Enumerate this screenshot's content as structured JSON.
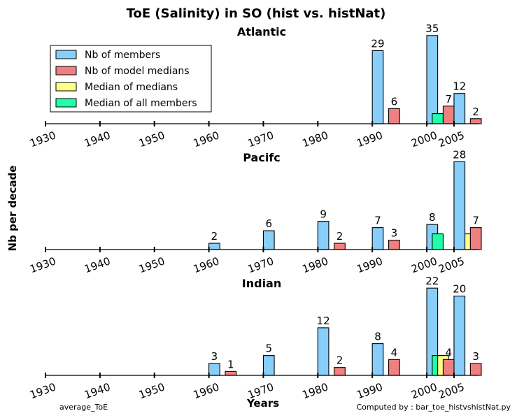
{
  "chart_data": {
    "type": "bar",
    "title": "ToE (Salinity) in SO (hist vs. histNat)",
    "ylabel": "Nb per decade",
    "xlabel": "Years",
    "x_ticks": [
      "1930",
      "1940",
      "1950",
      "1960",
      "1970",
      "1980",
      "1990",
      "2000",
      "2005"
    ],
    "legend": {
      "position": "upper-left of top panel",
      "entries": [
        {
          "name": "Nb of members",
          "color": "#87CEFA"
        },
        {
          "name": "Nb of model medians",
          "color": "#F08080"
        },
        {
          "name": "Median of medians",
          "color": "#FFFF88"
        },
        {
          "name": "Median of all members",
          "color": "#22FFAA"
        }
      ]
    },
    "series_colors": {
      "members": "#87CEFA",
      "medians": "#F08080",
      "median_of_medians": "#FFFF88",
      "median_of_all": "#22FFAA"
    },
    "panels": [
      {
        "title": "Atlantic",
        "ylim": [
          0,
          38
        ],
        "bars": [
          {
            "series": "members",
            "x": 1990,
            "value": 29,
            "label": "29"
          },
          {
            "series": "medians",
            "x": 1990,
            "value": 6,
            "label": "6"
          },
          {
            "series": "members",
            "x": 2000,
            "value": 35,
            "label": "35"
          },
          {
            "series": "median_of_all",
            "x": 2000,
            "value": 4
          },
          {
            "series": "medians",
            "x": 2000,
            "value": 7,
            "label": "7"
          },
          {
            "series": "members",
            "x": 2005,
            "value": 12,
            "label": "12"
          },
          {
            "series": "medians",
            "x": 2005,
            "value": 2,
            "label": "2"
          }
        ]
      },
      {
        "title": "Pacifc",
        "ylim": [
          0,
          31
        ],
        "bars": [
          {
            "series": "members",
            "x": 1960,
            "value": 2,
            "label": "2"
          },
          {
            "series": "members",
            "x": 1970,
            "value": 6,
            "label": "6"
          },
          {
            "series": "members",
            "x": 1980,
            "value": 9,
            "label": "9"
          },
          {
            "series": "medians",
            "x": 1980,
            "value": 2,
            "label": "2"
          },
          {
            "series": "members",
            "x": 1990,
            "value": 7,
            "label": "7"
          },
          {
            "series": "medians",
            "x": 1990,
            "value": 3,
            "label": "3"
          },
          {
            "series": "members",
            "x": 2000,
            "value": 8,
            "label": "8"
          },
          {
            "series": "median_of_all",
            "x": 2000,
            "value": 5
          },
          {
            "series": "members",
            "x": 2005,
            "value": 28,
            "label": "28"
          },
          {
            "series": "median_of_medians",
            "x": 2005,
            "value": 5
          },
          {
            "series": "medians",
            "x": 2005,
            "value": 7,
            "label": "7"
          }
        ]
      },
      {
        "title": "Indian",
        "ylim": [
          0,
          24.5
        ],
        "bars": [
          {
            "series": "members",
            "x": 1960,
            "value": 3,
            "label": "3"
          },
          {
            "series": "medians",
            "x": 1960,
            "value": 1,
            "label": "1"
          },
          {
            "series": "members",
            "x": 1970,
            "value": 5,
            "label": "5"
          },
          {
            "series": "members",
            "x": 1980,
            "value": 12,
            "label": "12"
          },
          {
            "series": "medians",
            "x": 1980,
            "value": 2,
            "label": "2"
          },
          {
            "series": "members",
            "x": 1990,
            "value": 8,
            "label": "8"
          },
          {
            "series": "medians",
            "x": 1990,
            "value": 4,
            "label": "4"
          },
          {
            "series": "members",
            "x": 2000,
            "value": 22,
            "label": "22"
          },
          {
            "series": "median_of_all",
            "x": 2000,
            "value": 5
          },
          {
            "series": "median_of_medians",
            "x": 2000,
            "value": 5
          },
          {
            "series": "medians",
            "x": 2000,
            "value": 4,
            "label": "4"
          },
          {
            "series": "members",
            "x": 2005,
            "value": 20,
            "label": "20"
          },
          {
            "series": "medians",
            "x": 2005,
            "value": 3,
            "label": "3"
          }
        ]
      }
    ]
  },
  "footer": {
    "left": "average_ToE",
    "right": "Computed by : bar_toe_histvshistNat.py"
  }
}
